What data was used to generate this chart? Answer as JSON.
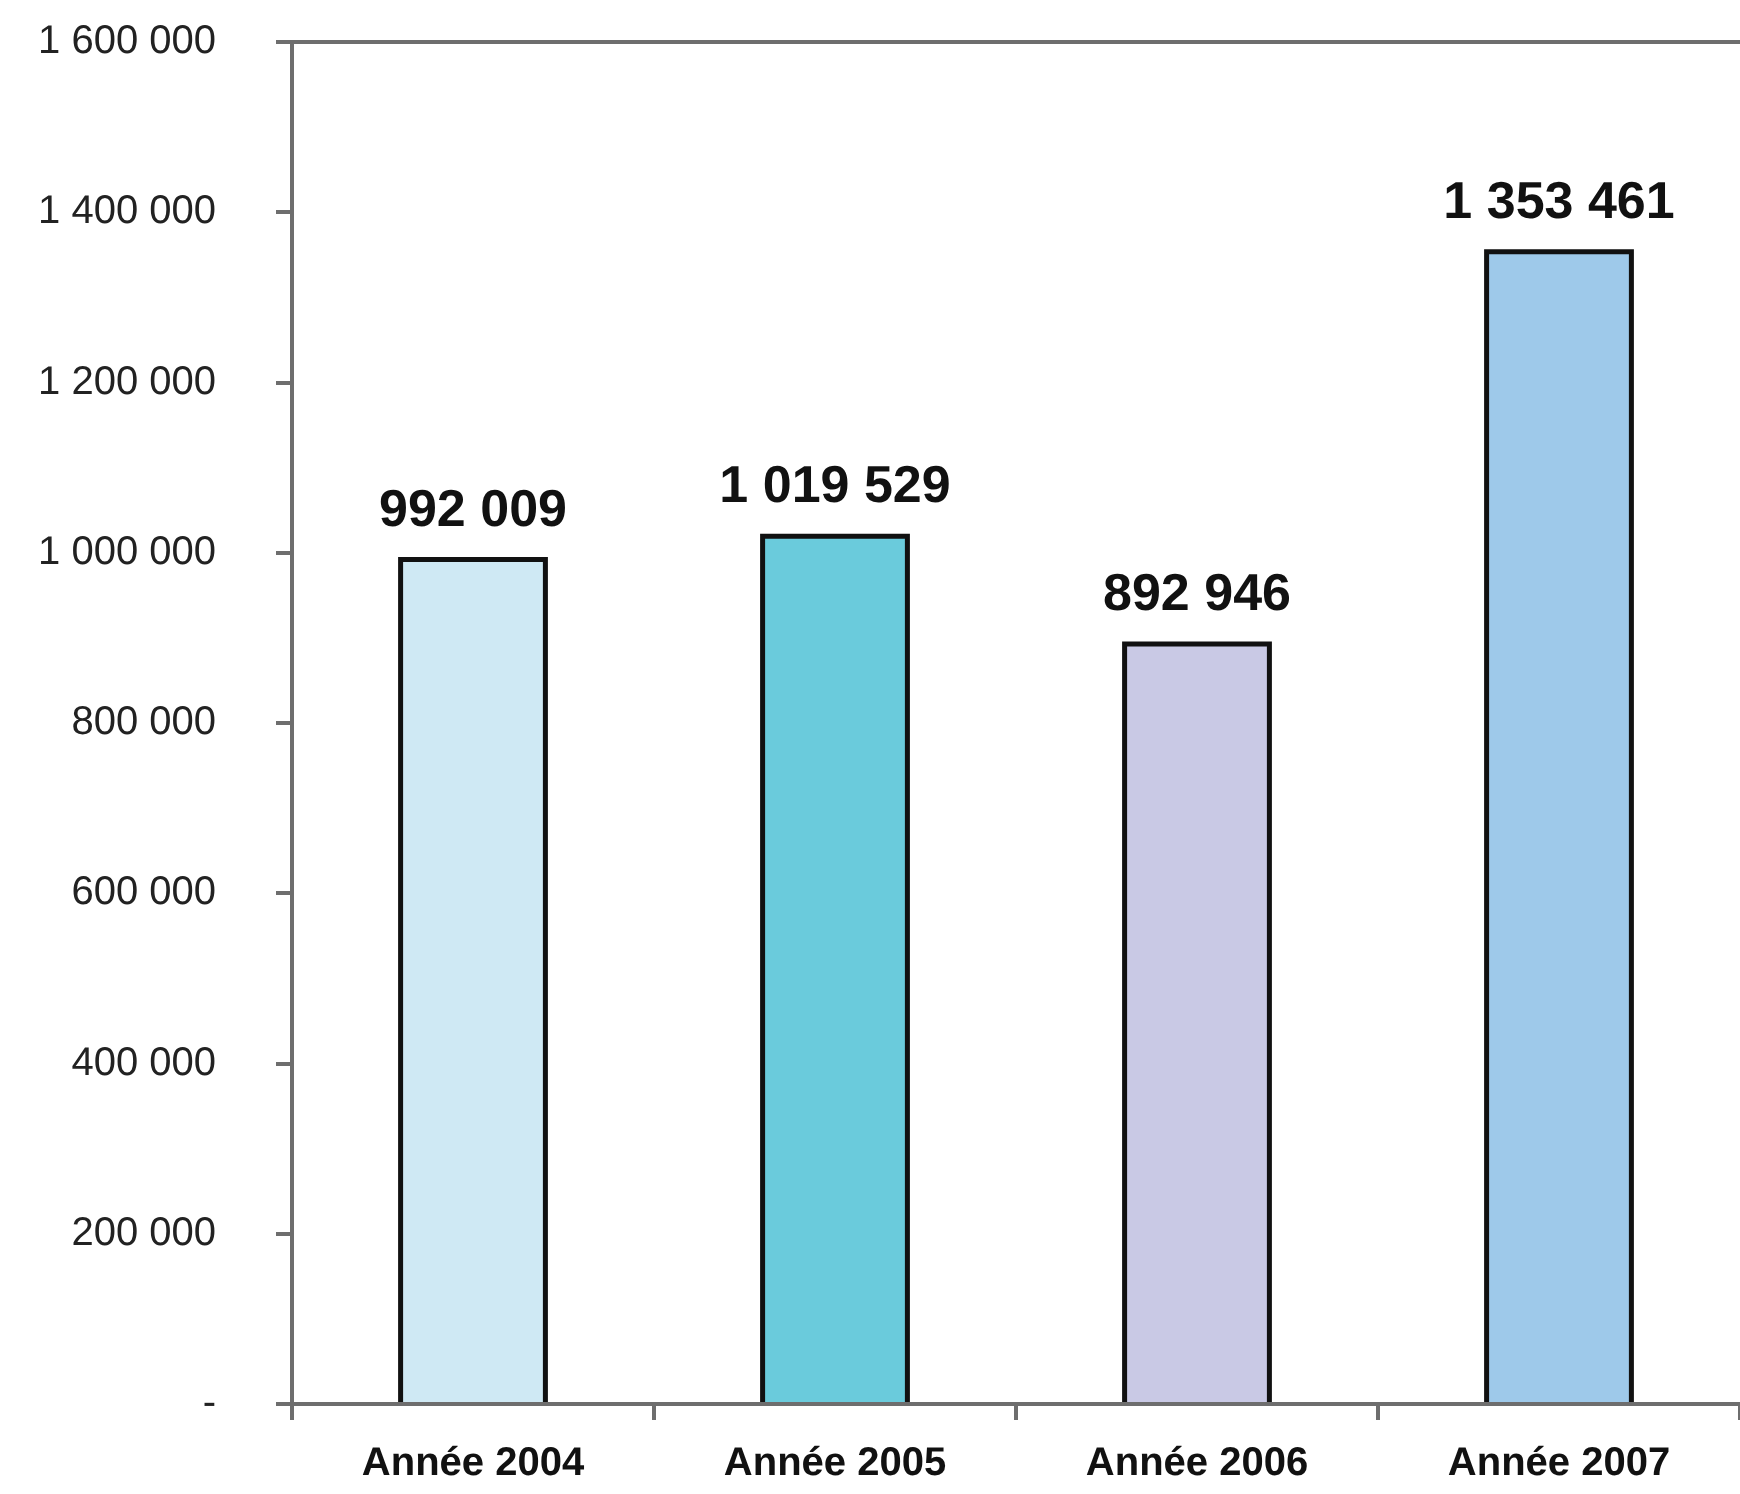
{
  "chart_data": {
    "type": "bar",
    "categories": [
      "Année 2004",
      "Année 2005",
      "Année 2006",
      "Année 2007"
    ],
    "values": [
      992009,
      1019529,
      892946,
      1353461
    ],
    "colors": [
      "#cfe9f4",
      "#6acbdc",
      "#c9c9e5",
      "#9ec9ea"
    ],
    "value_labels": [
      "992 009",
      "1 019 529",
      "892 946",
      "1 353 461"
    ],
    "ylim": [
      0,
      1600000
    ],
    "yticks": [
      {
        "value": 0,
        "label": "-"
      },
      {
        "value": 200000,
        "label": "200 000"
      },
      {
        "value": 400000,
        "label": "400 000"
      },
      {
        "value": 600000,
        "label": "600 000"
      },
      {
        "value": 800000,
        "label": "800 000"
      },
      {
        "value": 1000000,
        "label": "1 000 000"
      },
      {
        "value": 1200000,
        "label": "1 200 000"
      },
      {
        "value": 1400000,
        "label": "1 400 000"
      },
      {
        "value": 1600000,
        "label": "1 600 000"
      }
    ],
    "grid": false,
    "legend": false
  }
}
